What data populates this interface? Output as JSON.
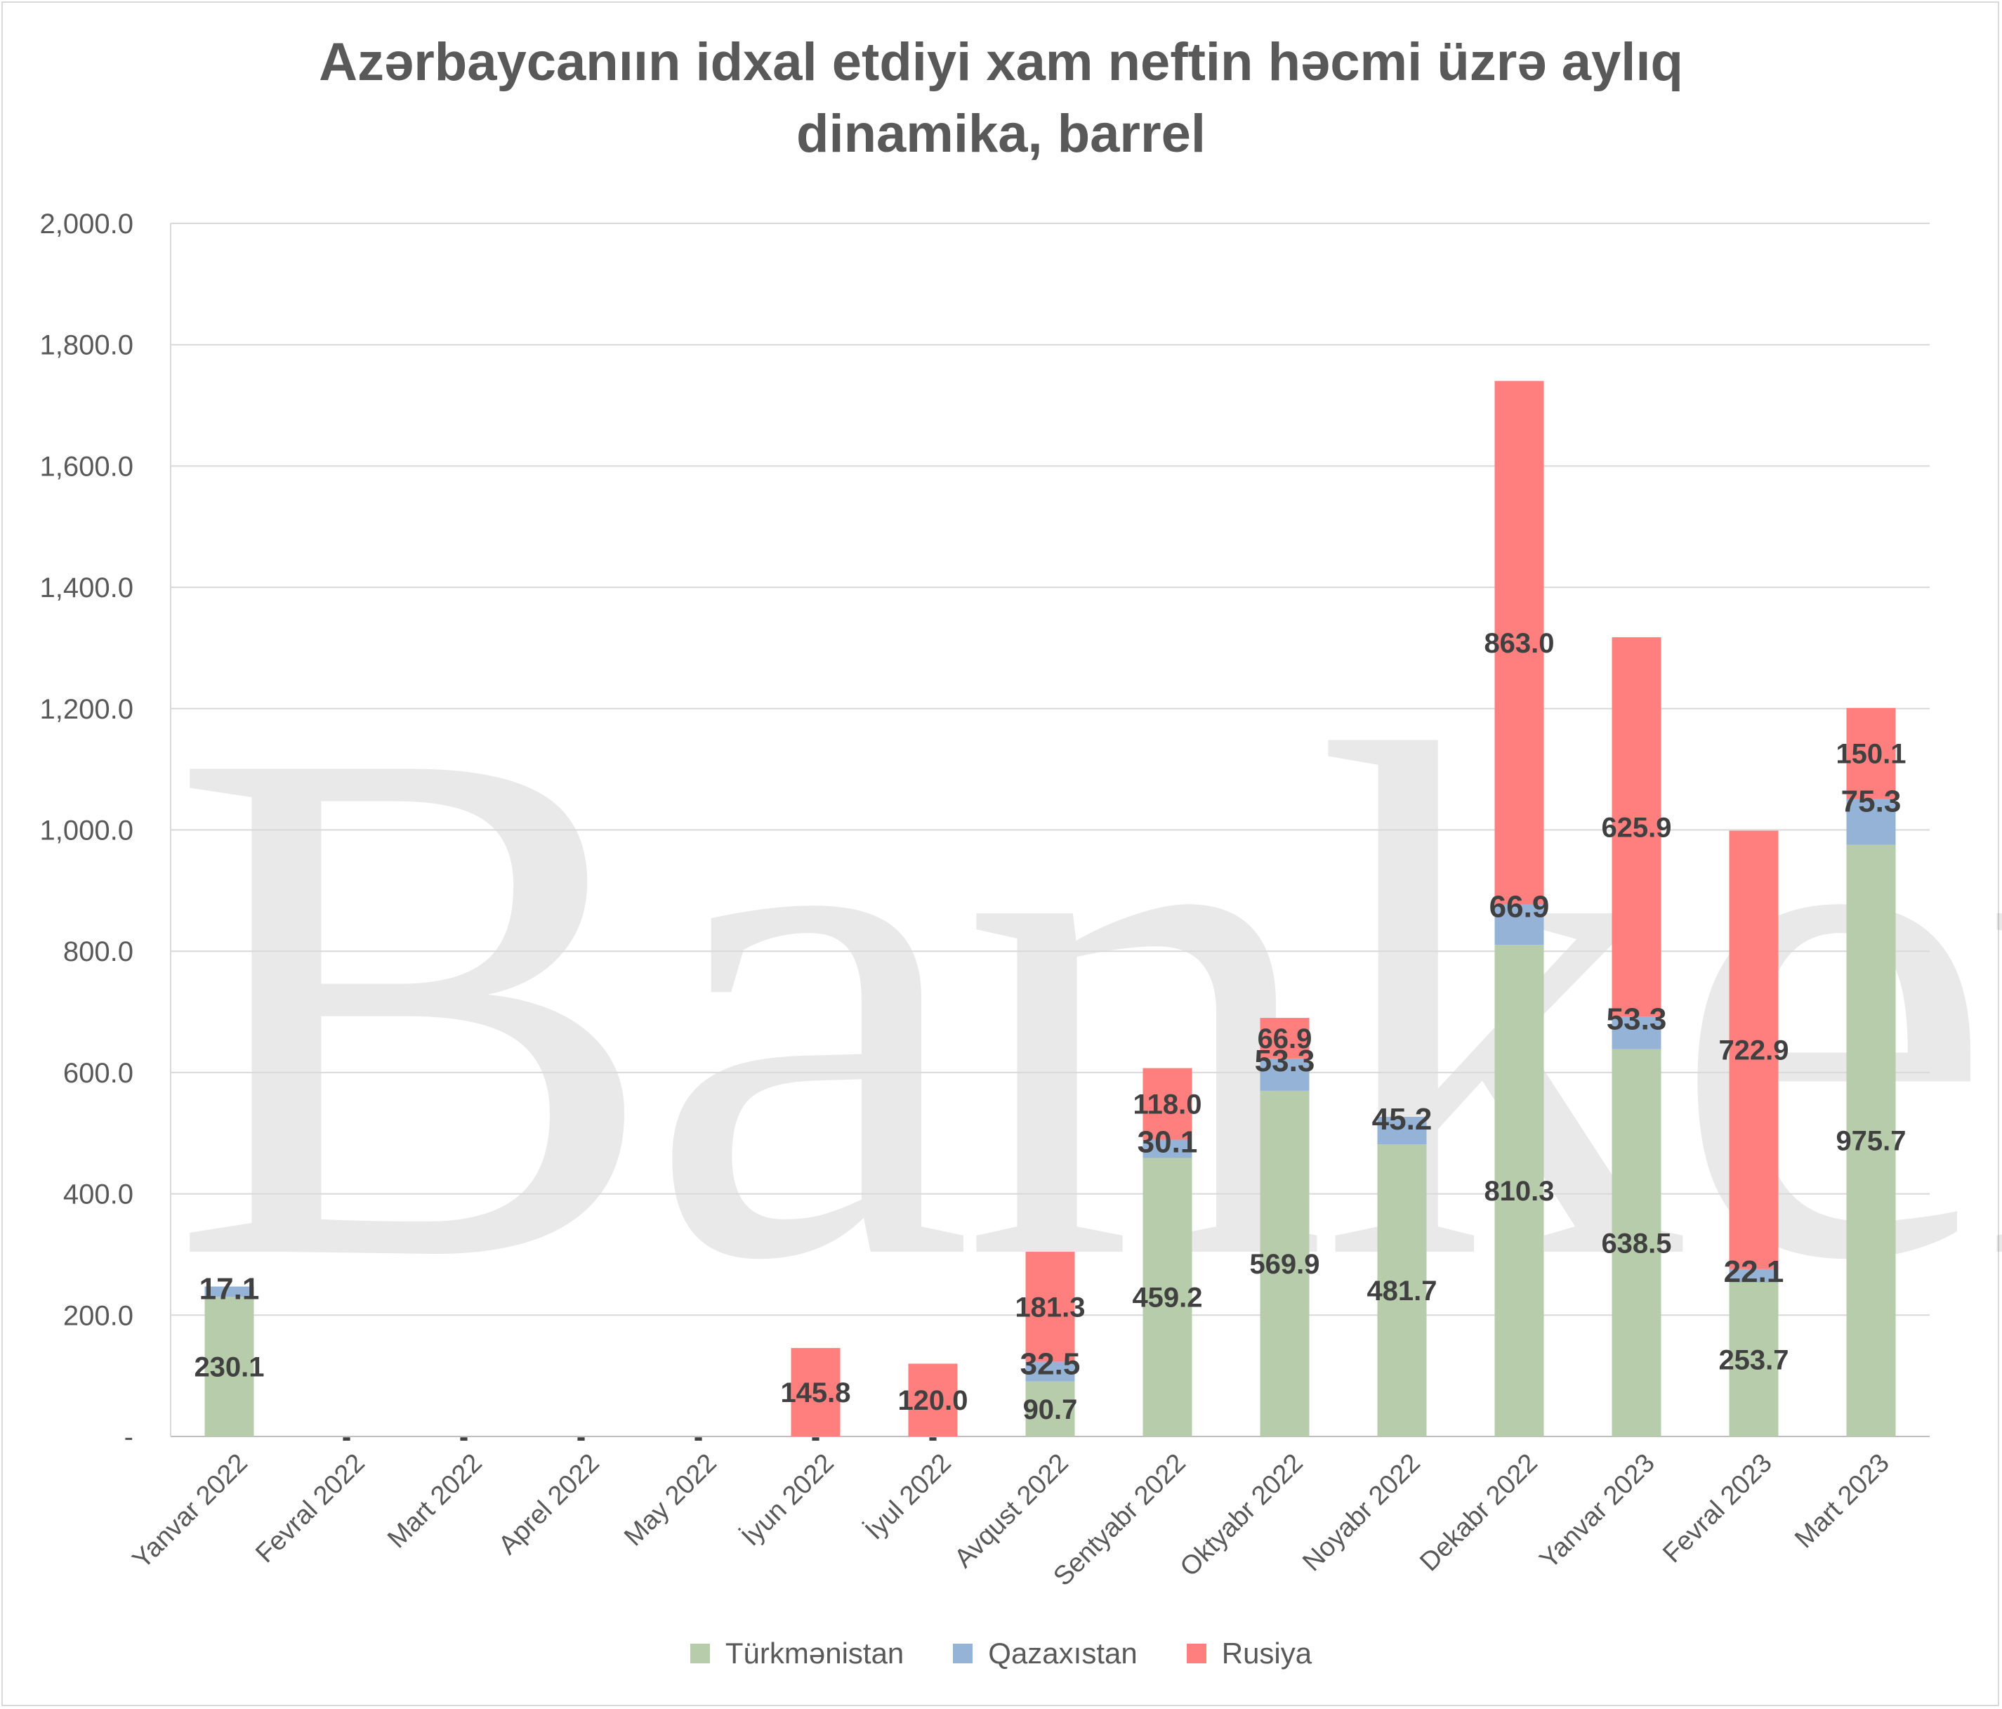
{
  "chart_data": {
    "type": "bar",
    "stacked": true,
    "title": "Azərbaycanıın idxal etdiyi xam neftin həcmi üzrə aylıq dinamika, barrel",
    "title_lines": [
      "Azərbaycanıın idxal etdiyi xam neftin həcmi üzrə aylıq",
      "dinamika, barrel"
    ],
    "categories": [
      "Yanvar 2022",
      "Fevral  2022",
      "Mart  2022",
      "Aprel  2022",
      "May 2022",
      "İyun  2022",
      "İyul 2022",
      "Avqust  2022",
      "Sentyabr  2022",
      "Oktyabr  2022",
      "Noyabr 2022",
      "Dekabr 2022",
      "Yanvar 2023",
      "Fevral  2023",
      "Mart  2023"
    ],
    "series": [
      {
        "name": "Türkmənistan",
        "color": "#b6ccaa",
        "values": [
          230.1,
          0,
          0,
          0,
          0,
          0,
          0,
          90.7,
          459.2,
          569.9,
          481.7,
          810.3,
          638.5,
          253.7,
          975.7
        ],
        "labels": [
          "230.1",
          "-",
          "-",
          "-",
          "-",
          "-",
          "-",
          "90.7",
          "459.2",
          "569.9",
          "481.7",
          "810.3",
          "638.5",
          "253.7",
          "975.7"
        ]
      },
      {
        "name": "Qazaxıstan",
        "color": "#95b3d7",
        "values": [
          17.1,
          0,
          0,
          0,
          0,
          0,
          0,
          32.5,
          30.1,
          53.3,
          45.2,
          66.9,
          53.3,
          22.1,
          75.3
        ],
        "labels": [
          "17.1",
          "",
          "",
          "",
          "",
          "",
          "",
          "32.5",
          "30.1",
          "53.3",
          "45.2",
          "66.9",
          "53.3",
          "22.1",
          "75.3"
        ]
      },
      {
        "name": "Rusiya",
        "color": "#ff7f7f",
        "values": [
          0,
          0,
          0,
          0,
          0,
          145.8,
          120.0,
          181.3,
          118.0,
          66.9,
          0,
          863.0,
          625.9,
          722.9,
          150.1
        ],
        "labels": [
          "",
          "",
          "",
          "",
          "",
          "145.8",
          "120.0",
          "181.3",
          "118.0",
          "66.9",
          "",
          "863.0",
          "625.9",
          "722.9",
          "150.1"
        ]
      }
    ],
    "yticks": [
      "-",
      "200.0",
      "400.0",
      "600.0",
      "800.0",
      "1,000.0",
      "1,200.0",
      "1,400.0",
      "1,600.0",
      "1,800.0",
      "2,000.0"
    ],
    "ylim": [
      0,
      2000
    ],
    "grid": true,
    "legend_position": "bottom",
    "watermark": "Banker az"
  }
}
